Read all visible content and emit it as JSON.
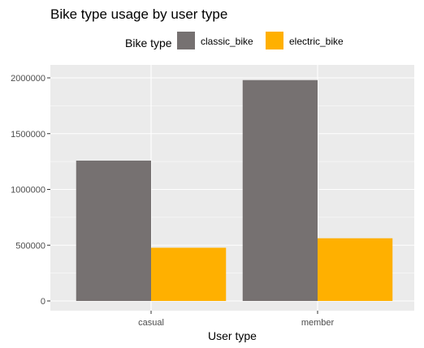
{
  "chart_data": {
    "type": "bar",
    "title": "Bike type usage by user type",
    "xlabel": "User type",
    "ylabel": "",
    "categories": [
      "casual",
      "member"
    ],
    "series": [
      {
        "name": "classic_bike",
        "color": "#767171",
        "values": [
          1258000,
          1980000
        ]
      },
      {
        "name": "electric_bike",
        "color": "#FFB000",
        "values": [
          477000,
          562000
        ]
      }
    ],
    "ylim": [
      0,
      2100000
    ],
    "yticks": [
      0,
      500000,
      1000000,
      1500000,
      2000000
    ],
    "ytick_labels": [
      "0",
      "500000",
      "1000000",
      "1500000",
      "2000000"
    ],
    "legend": {
      "title": "Bike type",
      "position": "top"
    },
    "grid": true,
    "panel_background": "#EBEBEB",
    "grid_color": "#FFFFFF"
  }
}
